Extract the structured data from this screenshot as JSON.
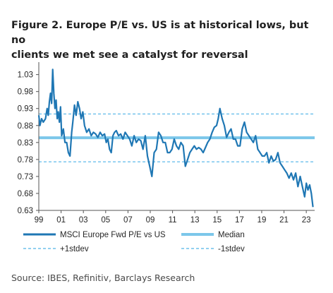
{
  "title_lines": [
    "Figure 2. Europe P/E vs. US is at historical lows, but no",
    "clients we met see a catalyst for reversal"
  ],
  "source": "Source: IBES, Refinitiv, Barclays Research",
  "colors": {
    "series": "#1f77b4",
    "median": "#7cc7ea",
    "stdev": "#4fb3e8",
    "axis": "#555555"
  },
  "chart_data": {
    "type": "line",
    "title": "Figure 2. Europe P/E vs. US is at historical lows, but no clients we met see a catalyst for reversal",
    "xlabel": "",
    "ylabel": "",
    "xlim": [
      1999,
      2023.75
    ],
    "ylim": [
      0.63,
      1.05
    ],
    "y_ticks": [
      1.03,
      0.98,
      0.93,
      0.88,
      0.83,
      0.78,
      0.73,
      0.68,
      0.63
    ],
    "y_tick_labels": [
      "1.03",
      "0.98",
      "0.93",
      "0.88",
      "0.83",
      "0.78",
      "0.73",
      "0.68",
      "0.63"
    ],
    "x_ticks": [
      1999,
      2001,
      2003,
      2005,
      2007,
      2009,
      2011,
      2013,
      2015,
      2017,
      2019,
      2021,
      2023
    ],
    "x_tick_labels": [
      "99",
      "01",
      "03",
      "05",
      "07",
      "09",
      "11",
      "13",
      "15",
      "17",
      "19",
      "21",
      "23"
    ],
    "grid": false,
    "legend_position": "bottom",
    "series": [
      {
        "name": "MSCI Europe Fwd P/E vs US",
        "style": "solid-dark",
        "x": [
          1999.0,
          1999.1,
          1999.25,
          1999.4,
          1999.6,
          1999.75,
          1999.85,
          1999.95,
          2000.05,
          2000.15,
          2000.25,
          2000.35,
          2000.45,
          2000.55,
          2000.65,
          2000.75,
          2000.85,
          2000.95,
          2001.05,
          2001.2,
          2001.35,
          2001.5,
          2001.65,
          2001.8,
          2001.95,
          2002.05,
          2002.2,
          2002.35,
          2002.5,
          2002.65,
          2002.8,
          2002.95,
          2003.1,
          2003.3,
          2003.5,
          2003.7,
          2003.9,
          2004.1,
          2004.3,
          2004.5,
          2004.7,
          2004.9,
          2005.05,
          2005.2,
          2005.35,
          2005.5,
          2005.65,
          2005.8,
          2005.95,
          2006.15,
          2006.35,
          2006.55,
          2006.75,
          2006.95,
          2007.15,
          2007.35,
          2007.55,
          2007.75,
          2007.95,
          2008.15,
          2008.35,
          2008.55,
          2008.75,
          2008.95,
          2009.15,
          2009.35,
          2009.55,
          2009.75,
          2009.95,
          2010.15,
          2010.35,
          2010.55,
          2010.75,
          2010.95,
          2011.15,
          2011.35,
          2011.55,
          2011.75,
          2011.95,
          2012.15,
          2012.35,
          2012.55,
          2012.75,
          2012.95,
          2013.15,
          2013.35,
          2013.55,
          2013.75,
          2013.95,
          2014.15,
          2014.35,
          2014.55,
          2014.75,
          2014.95,
          2015.1,
          2015.25,
          2015.45,
          2015.65,
          2015.85,
          2016.05,
          2016.25,
          2016.45,
          2016.65,
          2016.85,
          2017.05,
          2017.25,
          2017.45,
          2017.65,
          2017.85,
          2018.05,
          2018.25,
          2018.45,
          2018.65,
          2018.85,
          2019.05,
          2019.25,
          2019.45,
          2019.65,
          2019.85,
          2020.05,
          2020.25,
          2020.45,
          2020.65,
          2020.85,
          2021.05,
          2021.25,
          2021.45,
          2021.65,
          2021.85,
          2022.05,
          2022.25,
          2022.45,
          2022.65,
          2022.85,
          2023.0,
          2023.15,
          2023.3,
          2023.45,
          2023.6
        ],
        "values": [
          0.91,
          0.88,
          0.9,
          0.89,
          0.9,
          0.93,
          0.91,
          0.95,
          0.975,
          0.945,
          1.045,
          0.975,
          0.93,
          0.955,
          0.9,
          0.92,
          0.89,
          0.935,
          0.85,
          0.87,
          0.83,
          0.83,
          0.8,
          0.79,
          0.86,
          0.89,
          0.94,
          0.91,
          0.95,
          0.93,
          0.9,
          0.92,
          0.88,
          0.86,
          0.87,
          0.85,
          0.86,
          0.855,
          0.845,
          0.86,
          0.85,
          0.855,
          0.83,
          0.84,
          0.81,
          0.8,
          0.85,
          0.86,
          0.865,
          0.85,
          0.855,
          0.84,
          0.86,
          0.85,
          0.84,
          0.82,
          0.85,
          0.83,
          0.84,
          0.835,
          0.81,
          0.85,
          0.79,
          0.76,
          0.73,
          0.8,
          0.81,
          0.86,
          0.85,
          0.83,
          0.83,
          0.8,
          0.8,
          0.81,
          0.84,
          0.82,
          0.81,
          0.83,
          0.82,
          0.76,
          0.78,
          0.8,
          0.81,
          0.82,
          0.81,
          0.815,
          0.81,
          0.8,
          0.815,
          0.83,
          0.84,
          0.86,
          0.875,
          0.88,
          0.9,
          0.93,
          0.9,
          0.88,
          0.845,
          0.86,
          0.87,
          0.84,
          0.84,
          0.82,
          0.82,
          0.87,
          0.89,
          0.86,
          0.85,
          0.84,
          0.83,
          0.85,
          0.81,
          0.8,
          0.79,
          0.79,
          0.8,
          0.77,
          0.79,
          0.775,
          0.78,
          0.8,
          0.77,
          0.76,
          0.75,
          0.74,
          0.725,
          0.74,
          0.72,
          0.74,
          0.7,
          0.73,
          0.7,
          0.67,
          0.71,
          0.69,
          0.705,
          0.68,
          0.64
        ]
      },
      {
        "name": "Median",
        "style": "solid-light",
        "constant": 0.844
      },
      {
        "name": "+1stdev",
        "style": "dashed",
        "constant": 0.914
      },
      {
        "name": "-1stdev",
        "style": "dashed",
        "constant": 0.773
      }
    ]
  }
}
